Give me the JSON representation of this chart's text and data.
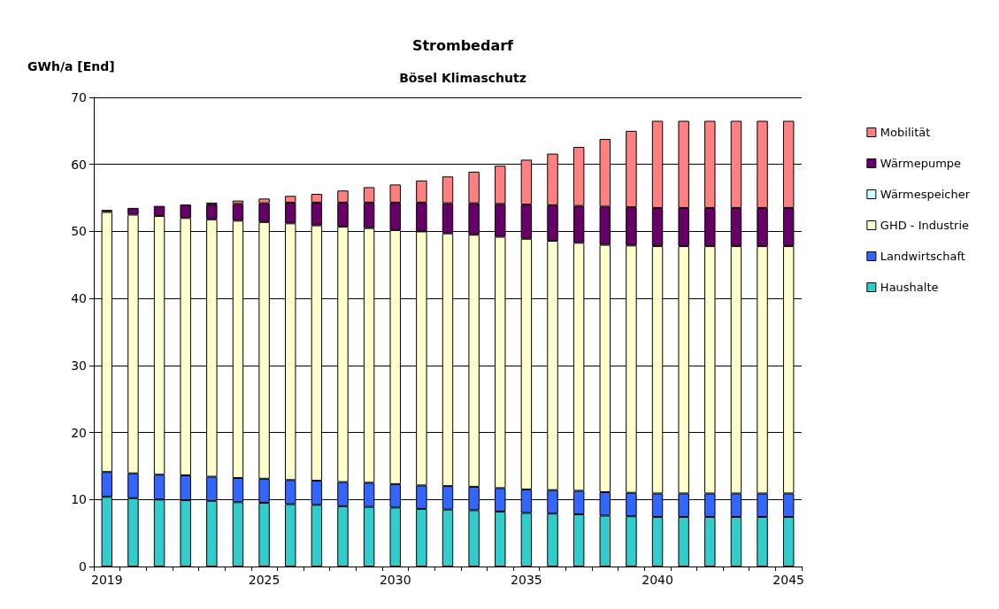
{
  "chart_data": {
    "type": "bar",
    "title": "Strombedarf",
    "subtitle": "Bösel Klimaschutz",
    "ylabel": "GWh/a [End]",
    "stacked": true,
    "grid": "y",
    "legend": "right",
    "ylim": [
      0,
      70
    ],
    "yticks": [
      0,
      10,
      20,
      30,
      40,
      50,
      60,
      70
    ],
    "categories": [
      "2019",
      null,
      null,
      null,
      null,
      null,
      "2025",
      null,
      null,
      null,
      null,
      "2030",
      null,
      null,
      null,
      null,
      "2035",
      null,
      null,
      null,
      null,
      "2040",
      null,
      null,
      null,
      null,
      "2045"
    ],
    "series": [
      {
        "name": "Haushalte",
        "color": "#33cccc",
        "values": [
          10.4,
          10.2,
          10.0,
          9.9,
          9.8,
          9.6,
          9.5,
          9.3,
          9.2,
          9.0,
          8.9,
          8.8,
          8.6,
          8.5,
          8.4,
          8.2,
          8.0,
          7.9,
          7.8,
          7.6,
          7.5,
          7.4,
          7.4,
          7.4,
          7.4,
          7.4,
          7.4
        ]
      },
      {
        "name": "Landwirtschaft",
        "color": "#3366ff",
        "values": [
          3.7,
          3.7,
          3.7,
          3.7,
          3.6,
          3.6,
          3.6,
          3.6,
          3.6,
          3.6,
          3.6,
          3.5,
          3.5,
          3.5,
          3.5,
          3.5,
          3.5,
          3.5,
          3.5,
          3.5,
          3.5,
          3.5,
          3.5,
          3.5,
          3.5,
          3.5,
          3.5
        ]
      },
      {
        "name": "GHD - Industrie",
        "color": "#ffffcc",
        "values": [
          38.8,
          38.6,
          38.6,
          38.4,
          38.4,
          38.4,
          38.3,
          38.3,
          38.1,
          38.1,
          38.0,
          37.9,
          37.9,
          37.7,
          37.6,
          37.5,
          37.4,
          37.2,
          37.0,
          36.9,
          36.9,
          36.9,
          36.9,
          36.9,
          36.9,
          36.9,
          36.9
        ]
      },
      {
        "name": "Wärmespeicher",
        "color": "#ccffff",
        "values": [
          0,
          0,
          0,
          0,
          0,
          0,
          0,
          0,
          0,
          0,
          0,
          0,
          0,
          0,
          0,
          0,
          0,
          0,
          0,
          0,
          0,
          0,
          0,
          0,
          0,
          0,
          0
        ]
      },
      {
        "name": "Wärmepumpe",
        "color": "#660066",
        "values": [
          0.3,
          1.0,
          1.5,
          2.0,
          2.2,
          2.5,
          2.8,
          3.1,
          3.4,
          3.6,
          3.8,
          4.1,
          4.3,
          4.5,
          4.7,
          4.9,
          5.1,
          5.3,
          5.5,
          5.7,
          5.7,
          5.7,
          5.7,
          5.7,
          5.7,
          5.7,
          5.7
        ]
      },
      {
        "name": "Mobilität",
        "color": "#ff8080",
        "values": [
          0,
          0,
          0,
          0,
          0.3,
          0.5,
          0.7,
          1.0,
          1.3,
          1.8,
          2.3,
          2.7,
          3.3,
          4.0,
          4.7,
          5.7,
          6.7,
          7.7,
          8.8,
          10.1,
          11.4,
          13.0,
          13.0,
          13.0,
          13.0,
          13.0,
          13.0
        ]
      }
    ]
  }
}
